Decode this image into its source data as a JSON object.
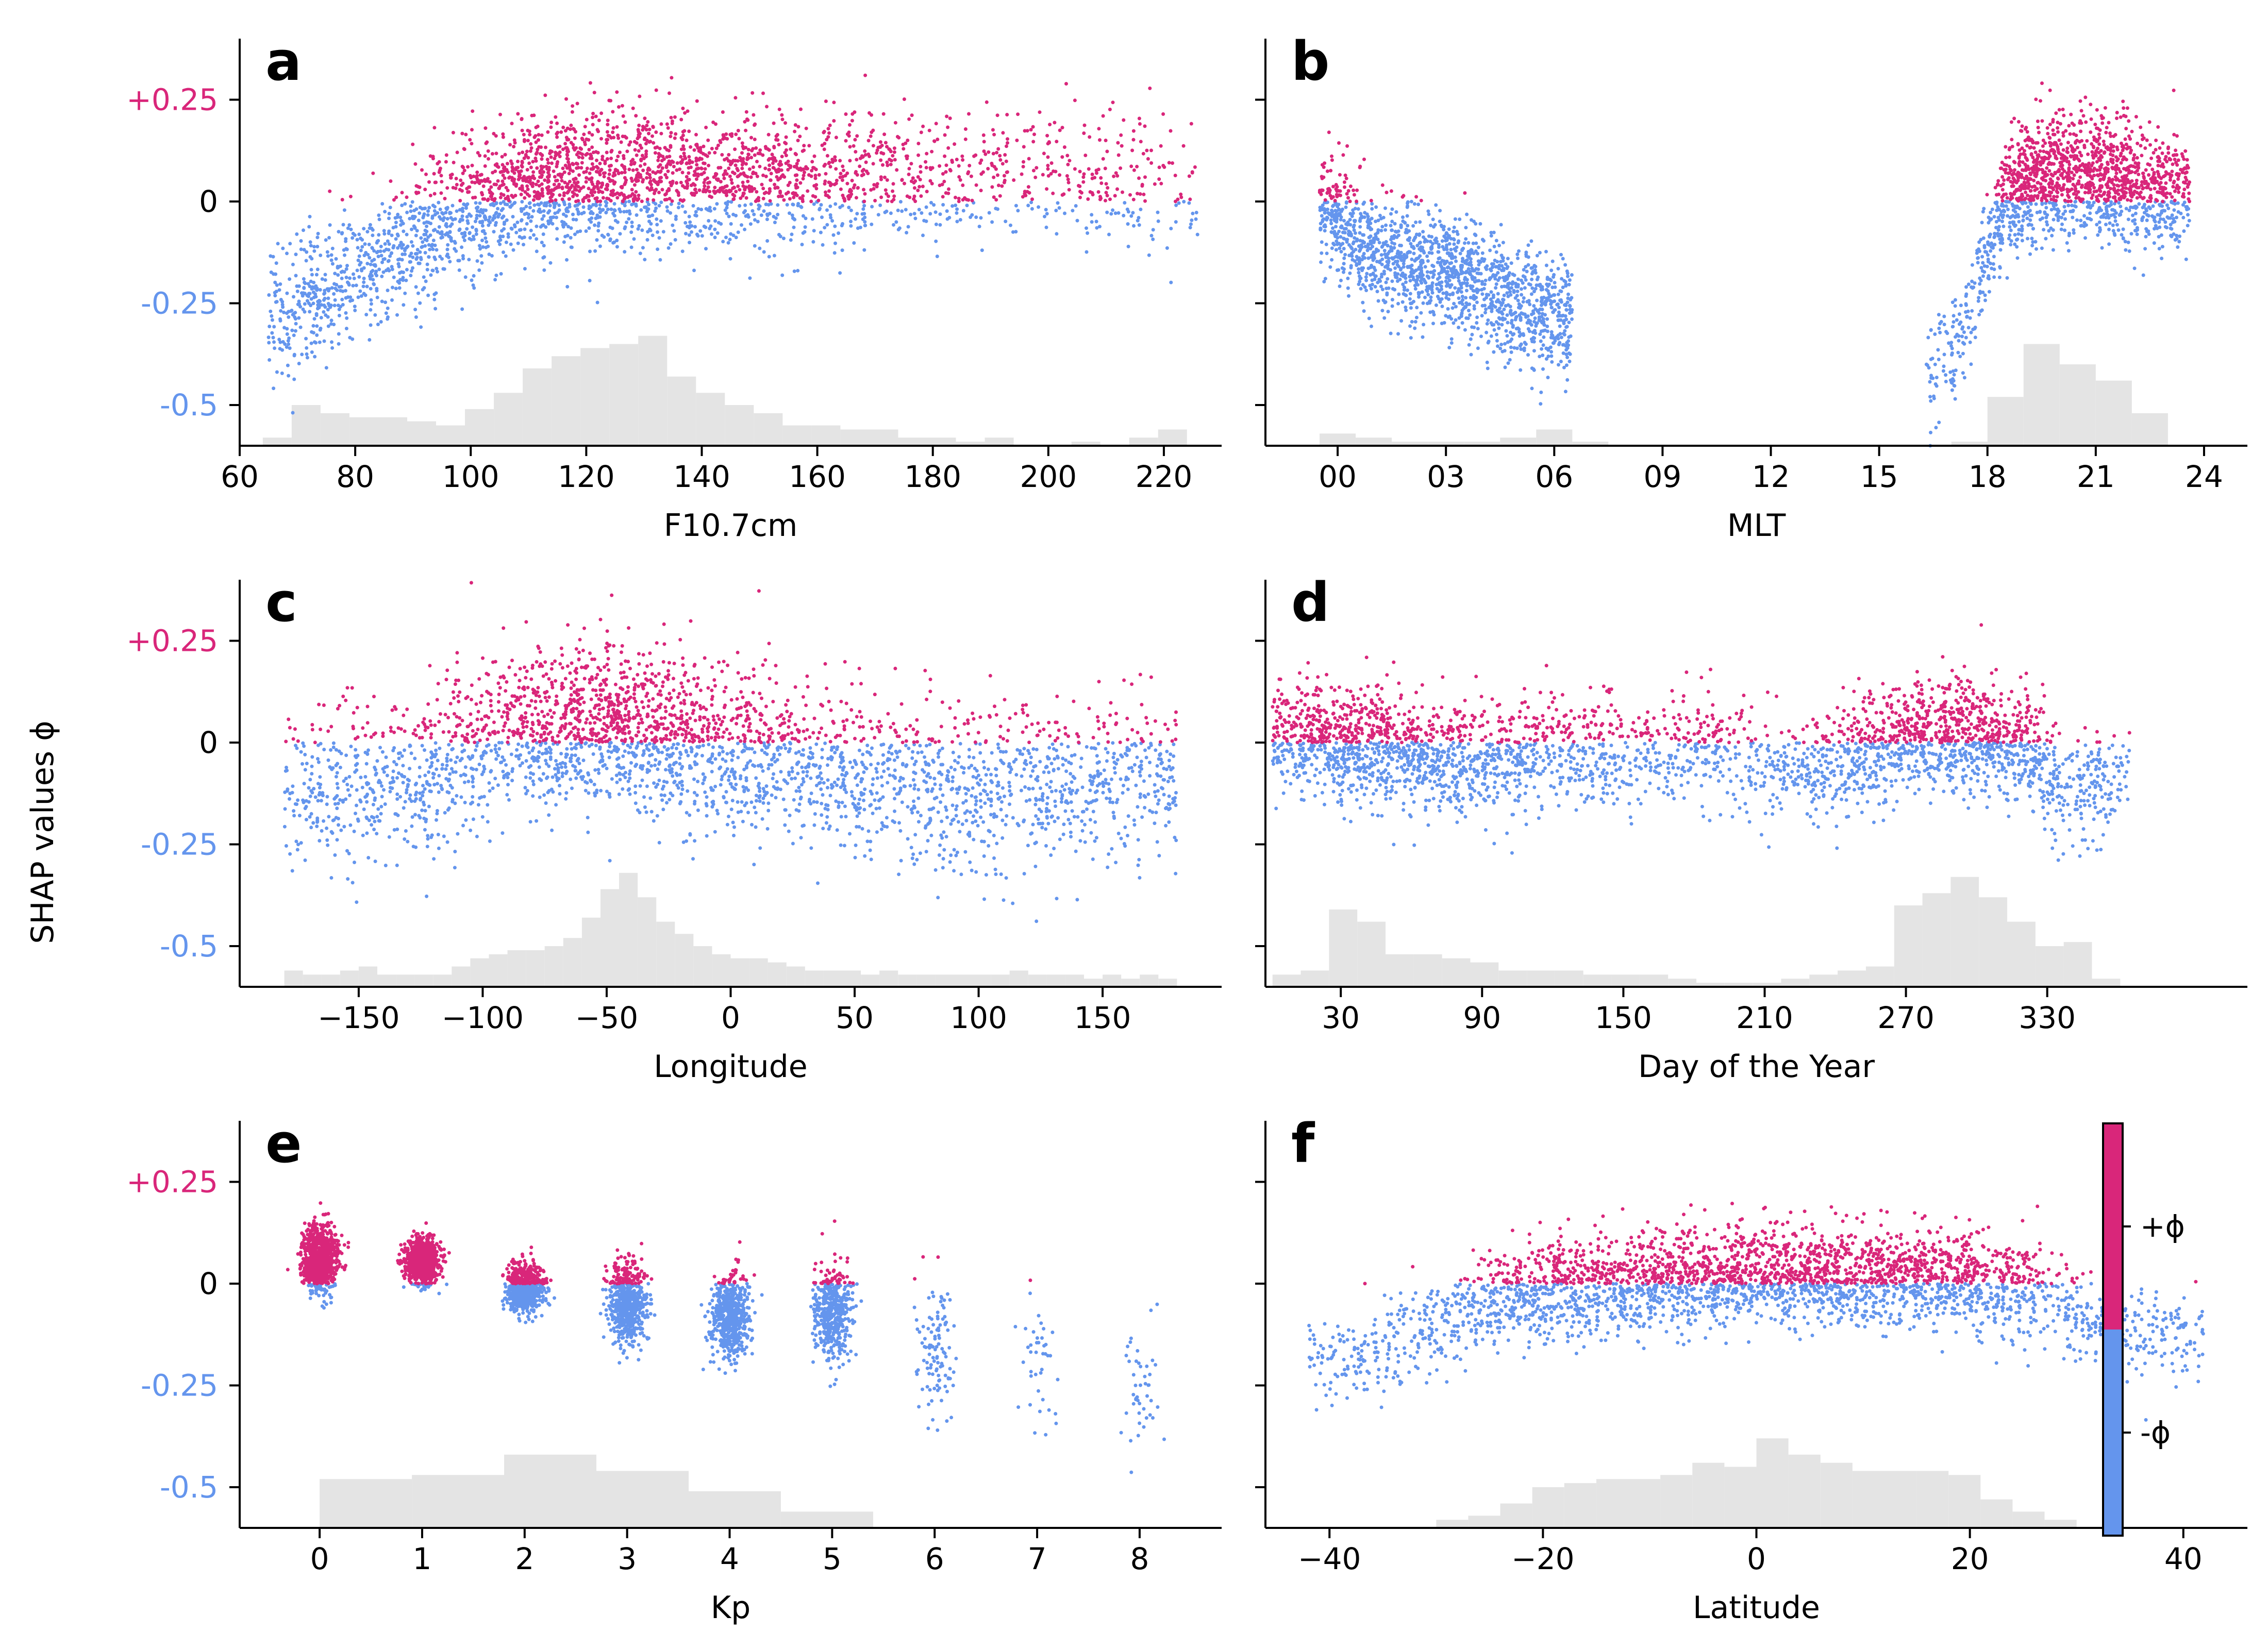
{
  "colors": {
    "positive": "#d9267a",
    "negative": "#6495ed",
    "histogram": "#e4e4e4"
  },
  "figure": {
    "ylabel": "SHAP values ϕ",
    "ytick_values": [
      0.25,
      0,
      -0.25,
      -0.5
    ],
    "ytick_labels": [
      "+0.25",
      "0",
      "-0.25",
      "-0.5"
    ],
    "ylim": [
      -0.6,
      0.4
    ]
  },
  "colorbar": {
    "labels": [
      "+ϕ",
      "-ϕ"
    ]
  },
  "chart_data": [
    {
      "panel": "a",
      "type": "scatter",
      "xlabel": "F10.7cm",
      "xlim": [
        60,
        230
      ],
      "xticks": [
        60,
        80,
        100,
        120,
        140,
        160,
        180,
        200,
        220
      ],
      "xtick_labels": [
        "60",
        "80",
        "100",
        "120",
        "140",
        "160",
        "180",
        "200",
        "220"
      ],
      "trend": [
        [
          65,
          -0.3
        ],
        [
          70,
          -0.26
        ],
        [
          80,
          -0.17
        ],
        [
          90,
          -0.09
        ],
        [
          100,
          -0.02
        ],
        [
          110,
          0.04
        ],
        [
          120,
          0.05
        ],
        [
          140,
          0.055
        ],
        [
          160,
          0.05
        ],
        [
          180,
          0.06
        ],
        [
          190,
          0.07
        ],
        [
          200,
          0.06
        ],
        [
          220,
          0.05
        ],
        [
          226,
          0.0
        ]
      ],
      "spread": 0.08,
      "density": [
        [
          65,
          0.5
        ],
        [
          80,
          0.6
        ],
        [
          100,
          0.8
        ],
        [
          120,
          1.0
        ],
        [
          140,
          0.85
        ],
        [
          160,
          0.55
        ],
        [
          180,
          0.35
        ],
        [
          226,
          0.15
        ]
      ],
      "histogram": {
        "bin_width": 5,
        "bins": [
          [
            64,
            0.02
          ],
          [
            69,
            0.1
          ],
          [
            74,
            0.08
          ],
          [
            79,
            0.07
          ],
          [
            84,
            0.07
          ],
          [
            89,
            0.06
          ],
          [
            94,
            0.05
          ],
          [
            99,
            0.09
          ],
          [
            104,
            0.13
          ],
          [
            109,
            0.19
          ],
          [
            114,
            0.22
          ],
          [
            119,
            0.24
          ],
          [
            124,
            0.25
          ],
          [
            129,
            0.27
          ],
          [
            134,
            0.17
          ],
          [
            139,
            0.13
          ],
          [
            144,
            0.1
          ],
          [
            149,
            0.08
          ],
          [
            154,
            0.05
          ],
          [
            159,
            0.05
          ],
          [
            164,
            0.04
          ],
          [
            169,
            0.04
          ],
          [
            174,
            0.02
          ],
          [
            179,
            0.02
          ],
          [
            184,
            0.01
          ],
          [
            189,
            0.02
          ],
          [
            204,
            0.01
          ],
          [
            214,
            0.02
          ],
          [
            219,
            0.04
          ]
        ]
      }
    },
    {
      "panel": "b",
      "type": "scatter",
      "xlabel": "MLT",
      "xlim": [
        -2,
        25.2
      ],
      "xticks": [
        0,
        3,
        6,
        9,
        12,
        15,
        18,
        21,
        24
      ],
      "xtick_labels": [
        "00",
        "03",
        "06",
        "09",
        "12",
        "15",
        "18",
        "21",
        "24"
      ],
      "trend": [
        [
          -0.5,
          0.0
        ],
        [
          0,
          -0.05
        ],
        [
          1,
          -0.12
        ],
        [
          2,
          -0.15
        ],
        [
          3,
          -0.17
        ],
        [
          4,
          -0.2
        ],
        [
          5,
          -0.26
        ],
        [
          6,
          -0.28
        ],
        [
          16.3,
          -0.4
        ],
        [
          17,
          -0.35
        ],
        [
          17.5,
          -0.28
        ],
        [
          18,
          -0.12
        ],
        [
          18.5,
          0.02
        ],
        [
          19,
          0.05
        ],
        [
          20,
          0.07
        ],
        [
          21,
          0.06
        ],
        [
          22,
          0.04
        ],
        [
          23.5,
          0.02
        ]
      ],
      "ranges": [
        [
          -0.5,
          6.5
        ],
        [
          16.3,
          23.6
        ]
      ],
      "spread": 0.07,
      "density": [
        [
          -0.5,
          0.4
        ],
        [
          3,
          0.5
        ],
        [
          6,
          0.4
        ],
        [
          16.3,
          0.1
        ],
        [
          18,
          0.4
        ],
        [
          19,
          1.0
        ],
        [
          21,
          1.0
        ],
        [
          23.6,
          0.6
        ]
      ],
      "histogram": {
        "bin_width": 1,
        "bins": [
          [
            -0.5,
            0.03
          ],
          [
            0.5,
            0.02
          ],
          [
            1.5,
            0.01
          ],
          [
            2.5,
            0.01
          ],
          [
            3.5,
            0.01
          ],
          [
            4.5,
            0.02
          ],
          [
            5.5,
            0.04
          ],
          [
            6.5,
            0.01
          ],
          [
            17,
            0.01
          ],
          [
            18,
            0.12
          ],
          [
            19,
            0.25
          ],
          [
            20,
            0.2
          ],
          [
            21,
            0.16
          ],
          [
            22,
            0.08
          ]
        ]
      }
    },
    {
      "panel": "c",
      "type": "scatter",
      "xlabel": "Longitude",
      "xlim": [
        -198,
        198
      ],
      "xticks": [
        -150,
        -100,
        -50,
        0,
        50,
        100,
        150
      ],
      "xtick_labels": [
        "−150",
        "−100",
        "−50",
        "0",
        "50",
        "100",
        "150"
      ],
      "trend": [
        [
          -180,
          -0.12
        ],
        [
          -150,
          -0.08
        ],
        [
          -125,
          -0.1
        ],
        [
          -100,
          0.02
        ],
        [
          -75,
          0.03
        ],
        [
          -50,
          0.06
        ],
        [
          -25,
          0.02
        ],
        [
          0,
          -0.02
        ],
        [
          25,
          -0.05
        ],
        [
          50,
          -0.08
        ],
        [
          100,
          -0.12
        ],
        [
          150,
          -0.1
        ],
        [
          180,
          -0.07
        ]
      ],
      "spread": 0.1,
      "density": [
        [
          -180,
          0.3
        ],
        [
          -100,
          0.5
        ],
        [
          -50,
          1.0
        ],
        [
          0,
          0.6
        ],
        [
          50,
          0.45
        ],
        [
          180,
          0.35
        ]
      ],
      "histogram": {
        "bin_width": 7.5,
        "bins": [
          [
            -180,
            0.04
          ],
          [
            -172.5,
            0.03
          ],
          [
            -165,
            0.03
          ],
          [
            -157.5,
            0.04
          ],
          [
            -150,
            0.05
          ],
          [
            -142.5,
            0.03
          ],
          [
            -135,
            0.03
          ],
          [
            -127.5,
            0.03
          ],
          [
            -120,
            0.03
          ],
          [
            -112.5,
            0.05
          ],
          [
            -105,
            0.07
          ],
          [
            -97.5,
            0.08
          ],
          [
            -90,
            0.09
          ],
          [
            -82.5,
            0.09
          ],
          [
            -75,
            0.1
          ],
          [
            -67.5,
            0.12
          ],
          [
            -60,
            0.17
          ],
          [
            -52.5,
            0.24
          ],
          [
            -45,
            0.28
          ],
          [
            -37.5,
            0.22
          ],
          [
            -30,
            0.16
          ],
          [
            -22.5,
            0.13
          ],
          [
            -15,
            0.1
          ],
          [
            -7.5,
            0.08
          ],
          [
            0,
            0.07
          ],
          [
            7.5,
            0.07
          ],
          [
            15,
            0.06
          ],
          [
            22.5,
            0.05
          ],
          [
            30,
            0.04
          ],
          [
            37.5,
            0.04
          ],
          [
            45,
            0.04
          ],
          [
            52.5,
            0.03
          ],
          [
            60,
            0.04
          ],
          [
            67.5,
            0.03
          ],
          [
            75,
            0.03
          ],
          [
            82.5,
            0.03
          ],
          [
            90,
            0.03
          ],
          [
            97.5,
            0.03
          ],
          [
            105,
            0.03
          ],
          [
            112.5,
            0.04
          ],
          [
            120,
            0.03
          ],
          [
            127.5,
            0.03
          ],
          [
            135,
            0.03
          ],
          [
            142.5,
            0.02
          ],
          [
            150,
            0.03
          ],
          [
            157.5,
            0.02
          ],
          [
            165,
            0.03
          ],
          [
            172.5,
            0.02
          ]
        ]
      }
    },
    {
      "panel": "d",
      "type": "scatter",
      "xlabel": "Day of the Year",
      "xlim": [
        -2,
        415
      ],
      "xticks": [
        30,
        90,
        150,
        210,
        270,
        330
      ],
      "xtick_labels": [
        "30",
        "90",
        "150",
        "210",
        "270",
        "330"
      ],
      "trend": [
        [
          1,
          0.02
        ],
        [
          30,
          0.0
        ],
        [
          60,
          -0.03
        ],
        [
          90,
          -0.05
        ],
        [
          120,
          -0.02
        ],
        [
          150,
          -0.03
        ],
        [
          180,
          0.0
        ],
        [
          210,
          -0.06
        ],
        [
          240,
          -0.05
        ],
        [
          270,
          0.02
        ],
        [
          300,
          0.02
        ],
        [
          320,
          0.0
        ],
        [
          340,
          -0.14
        ],
        [
          350,
          -0.1
        ],
        [
          365,
          -0.05
        ]
      ],
      "spread": 0.07,
      "density": [
        [
          1,
          0.6
        ],
        [
          30,
          1.0
        ],
        [
          90,
          0.6
        ],
        [
          150,
          0.4
        ],
        [
          210,
          0.3
        ],
        [
          270,
          0.8
        ],
        [
          300,
          1.0
        ],
        [
          330,
          0.6
        ],
        [
          365,
          0.3
        ]
      ],
      "histogram": {
        "bin_width": 12,
        "bins": [
          [
            1,
            0.03
          ],
          [
            13,
            0.04
          ],
          [
            25,
            0.19
          ],
          [
            37,
            0.16
          ],
          [
            49,
            0.08
          ],
          [
            61,
            0.08
          ],
          [
            73,
            0.07
          ],
          [
            85,
            0.06
          ],
          [
            97,
            0.04
          ],
          [
            109,
            0.04
          ],
          [
            121,
            0.04
          ],
          [
            133,
            0.03
          ],
          [
            145,
            0.03
          ],
          [
            157,
            0.03
          ],
          [
            169,
            0.02
          ],
          [
            181,
            0.01
          ],
          [
            193,
            0.01
          ],
          [
            205,
            0.01
          ],
          [
            217,
            0.02
          ],
          [
            229,
            0.03
          ],
          [
            241,
            0.04
          ],
          [
            253,
            0.05
          ],
          [
            265,
            0.2
          ],
          [
            277,
            0.23
          ],
          [
            289,
            0.27
          ],
          [
            301,
            0.22
          ],
          [
            313,
            0.16
          ],
          [
            325,
            0.1
          ],
          [
            337,
            0.11
          ],
          [
            349,
            0.02
          ]
        ]
      }
    },
    {
      "panel": "e",
      "type": "scatter",
      "xlabel": "Kp",
      "xlim": [
        -0.78,
        8.8
      ],
      "xticks": [
        0,
        1,
        2,
        3,
        4,
        5,
        6,
        7,
        8
      ],
      "xtick_labels": [
        "0",
        "1",
        "2",
        "3",
        "4",
        "5",
        "6",
        "7",
        "8"
      ],
      "clusters": [
        [
          0,
          0.06,
          0.04,
          900
        ],
        [
          1,
          0.055,
          0.03,
          800
        ],
        [
          2,
          -0.01,
          0.03,
          700
        ],
        [
          3,
          -0.05,
          0.05,
          650
        ],
        [
          4,
          -0.08,
          0.05,
          600
        ],
        [
          5,
          -0.07,
          0.06,
          500
        ],
        [
          6,
          -0.17,
          0.08,
          110
        ],
        [
          7,
          -0.2,
          0.09,
          40
        ],
        [
          8,
          -0.28,
          0.08,
          45
        ]
      ],
      "histogram": {
        "bin_width": 0.9,
        "bins": [
          [
            0,
            0.12
          ],
          [
            0.9,
            0.13
          ],
          [
            1.8,
            0.18
          ],
          [
            2.7,
            0.14
          ],
          [
            3.6,
            0.09
          ],
          [
            4.5,
            0.04
          ]
        ]
      }
    },
    {
      "panel": "f",
      "type": "scatter",
      "xlabel": "Latitude",
      "xlim": [
        -46,
        46
      ],
      "xticks": [
        -40,
        -20,
        0,
        20,
        40
      ],
      "xtick_labels": [
        "−40",
        "−20",
        "0",
        "20",
        "40"
      ],
      "trend": [
        [
          -42,
          -0.2
        ],
        [
          -35,
          -0.16
        ],
        [
          -28,
          -0.08
        ],
        [
          -24,
          -0.03
        ],
        [
          -10,
          0.0
        ],
        [
          0,
          0.02
        ],
        [
          10,
          0.02
        ],
        [
          20,
          0.01
        ],
        [
          26,
          -0.01
        ],
        [
          30,
          -0.08
        ],
        [
          35,
          -0.12
        ],
        [
          42,
          -0.14
        ]
      ],
      "spread": 0.06,
      "density": [
        [
          -42,
          0.2
        ],
        [
          -28,
          0.4
        ],
        [
          -20,
          0.8
        ],
        [
          0,
          1.0
        ],
        [
          20,
          0.9
        ],
        [
          27,
          0.5
        ],
        [
          42,
          0.2
        ]
      ],
      "histogram": {
        "bin_width": 3,
        "bins": [
          [
            -30,
            0.02
          ],
          [
            -27,
            0.03
          ],
          [
            -24,
            0.06
          ],
          [
            -21,
            0.1
          ],
          [
            -18,
            0.11
          ],
          [
            -15,
            0.12
          ],
          [
            -12,
            0.12
          ],
          [
            -9,
            0.13
          ],
          [
            -6,
            0.16
          ],
          [
            -3,
            0.15
          ],
          [
            0,
            0.22
          ],
          [
            3,
            0.18
          ],
          [
            6,
            0.16
          ],
          [
            9,
            0.14
          ],
          [
            12,
            0.14
          ],
          [
            15,
            0.14
          ],
          [
            18,
            0.13
          ],
          [
            21,
            0.07
          ],
          [
            24,
            0.04
          ],
          [
            27,
            0.02
          ]
        ]
      }
    }
  ]
}
